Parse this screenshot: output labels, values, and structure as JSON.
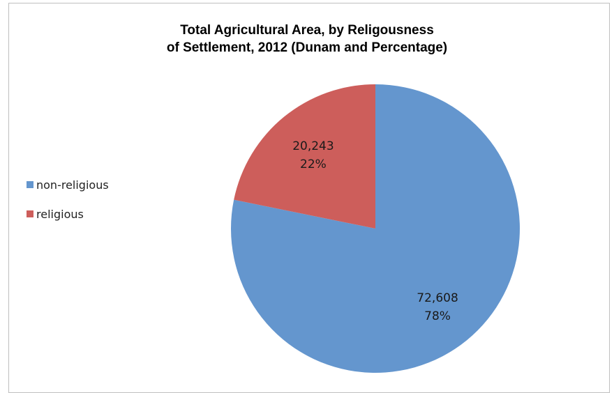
{
  "chart_data": {
    "type": "pie",
    "title_lines": [
      "Total Agricultural Area, by Religousness",
      "of Settlement, 2012 (Dunam and Percentage)"
    ],
    "categories": [
      "non-religious",
      "religious"
    ],
    "values": [
      72608,
      20243
    ],
    "percentages": [
      78,
      22
    ],
    "value_labels": [
      "72,608",
      "20,243"
    ],
    "percent_labels": [
      "78%",
      "22%"
    ],
    "colors": [
      "#6496ce",
      "#cd5e5b"
    ],
    "legend": {
      "placement": "left",
      "entries": [
        {
          "label": "non-religious",
          "color": "#6496ce"
        },
        {
          "label": "religious",
          "color": "#cd5e5b"
        }
      ]
    }
  }
}
